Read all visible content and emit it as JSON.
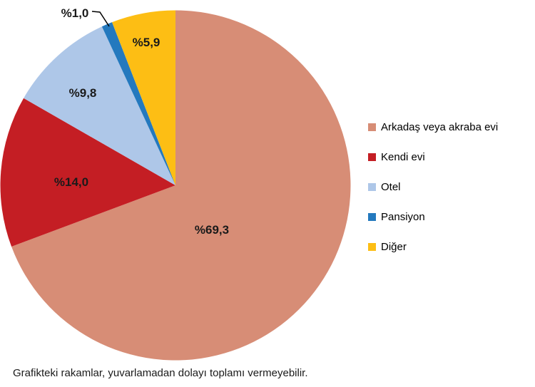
{
  "chart_data": {
    "type": "pie",
    "title": "",
    "direction": "clockwise",
    "start_angle_deg": 0,
    "legend_position": "right",
    "grid": false,
    "slices": [
      {
        "id": "arkadas-veya-akraba-evi",
        "label": "Arkadaş veya akraba evi",
        "value": 69.3,
        "display": "%69,3",
        "color": "#D78D76"
      },
      {
        "id": "kendi-evi",
        "label": "Kendi evi",
        "value": 14.0,
        "display": "%14,0",
        "color": "#C41E24"
      },
      {
        "id": "otel",
        "label": "Otel",
        "value": 9.8,
        "display": "%9,8",
        "color": "#AEC7E8"
      },
      {
        "id": "pansiyon",
        "label": "Pansiyon",
        "value": 1.0,
        "display": "%1,0",
        "color": "#2479BE"
      },
      {
        "id": "diger",
        "label": "Diğer",
        "value": 5.9,
        "display": "%5,9",
        "color": "#FDBE14"
      }
    ],
    "footnote": "Grafikteki rakamlar, yuvarlamadan dolayı toplamı vermeyebilir."
  }
}
